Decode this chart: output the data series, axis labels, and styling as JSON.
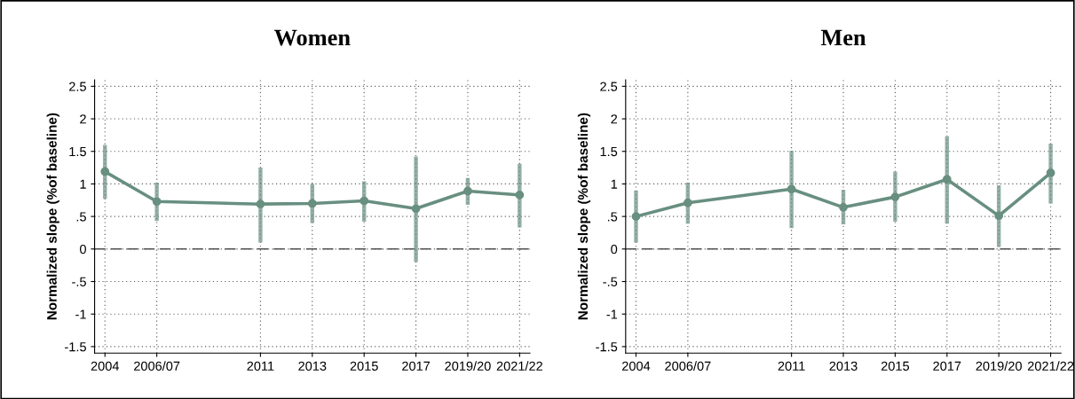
{
  "chart_data": [
    {
      "type": "line",
      "title": "Women",
      "ylabel": "Normalized slope (%of baseline)",
      "categories": [
        "2004",
        "2006/07",
        null,
        "2011",
        "2013",
        "2015",
        "2017",
        "2019/20",
        "2021/22"
      ],
      "series": [
        {
          "color": "#688f80",
          "values": [
            1.19,
            0.73,
            null,
            0.69,
            0.7,
            0.74,
            0.62,
            0.89,
            0.83
          ],
          "errors": [
            [
              0.77,
              1.6
            ],
            [
              0.43,
              1.02
            ],
            null,
            [
              0.1,
              1.25
            ],
            [
              0.4,
              1.0
            ],
            [
              0.42,
              1.04
            ],
            [
              -0.2,
              1.42
            ],
            [
              0.68,
              1.09
            ],
            [
              0.33,
              1.31
            ]
          ]
        }
      ],
      "ylim": [
        -1.6,
        2.6
      ],
      "yticks": [
        {
          "value": -1.5,
          "label": "-1.5"
        },
        -1,
        {
          "value": -0.5,
          "label": "-.5"
        },
        0,
        {
          "value": 0.5,
          "label": ".5"
        },
        1,
        1.5,
        2,
        2.5
      ],
      "ref_lines": [
        {
          "axis": "y",
          "value": 0,
          "color": "#555555",
          "line_style": "dashed"
        }
      ],
      "grid": true,
      "marker": "circle",
      "line_style": "solid"
    },
    {
      "type": "line",
      "title": "Men",
      "ylabel": "Normalized slope (%of baseline)",
      "categories": [
        "2004",
        "2006/07",
        null,
        "2011",
        "2013",
        "2015",
        "2017",
        "2019/20",
        "2021/22"
      ],
      "series": [
        {
          "color": "#688f80",
          "values": [
            0.5,
            0.71,
            null,
            0.92,
            0.64,
            0.8,
            1.07,
            0.51,
            1.17
          ],
          "errors": [
            [
              0.1,
              0.9
            ],
            [
              0.39,
              1.02
            ],
            null,
            [
              0.32,
              1.51
            ],
            [
              0.38,
              0.91
            ],
            [
              0.42,
              1.19
            ],
            [
              0.39,
              1.73
            ],
            [
              0.03,
              0.98
            ],
            [
              0.7,
              1.62
            ]
          ]
        }
      ],
      "ylim": [
        -1.6,
        2.6
      ],
      "yticks": [
        {
          "value": -1.5,
          "label": "-1.5"
        },
        -1,
        {
          "value": -0.5,
          "label": "-.5"
        },
        0,
        {
          "value": 0.5,
          "label": ".5"
        },
        1,
        1.5,
        2,
        2.5
      ],
      "ref_lines": [
        {
          "axis": "y",
          "value": 0,
          "color": "#555555",
          "line_style": "dashed"
        }
      ],
      "grid": true,
      "marker": "circle",
      "line_style": "solid"
    }
  ]
}
